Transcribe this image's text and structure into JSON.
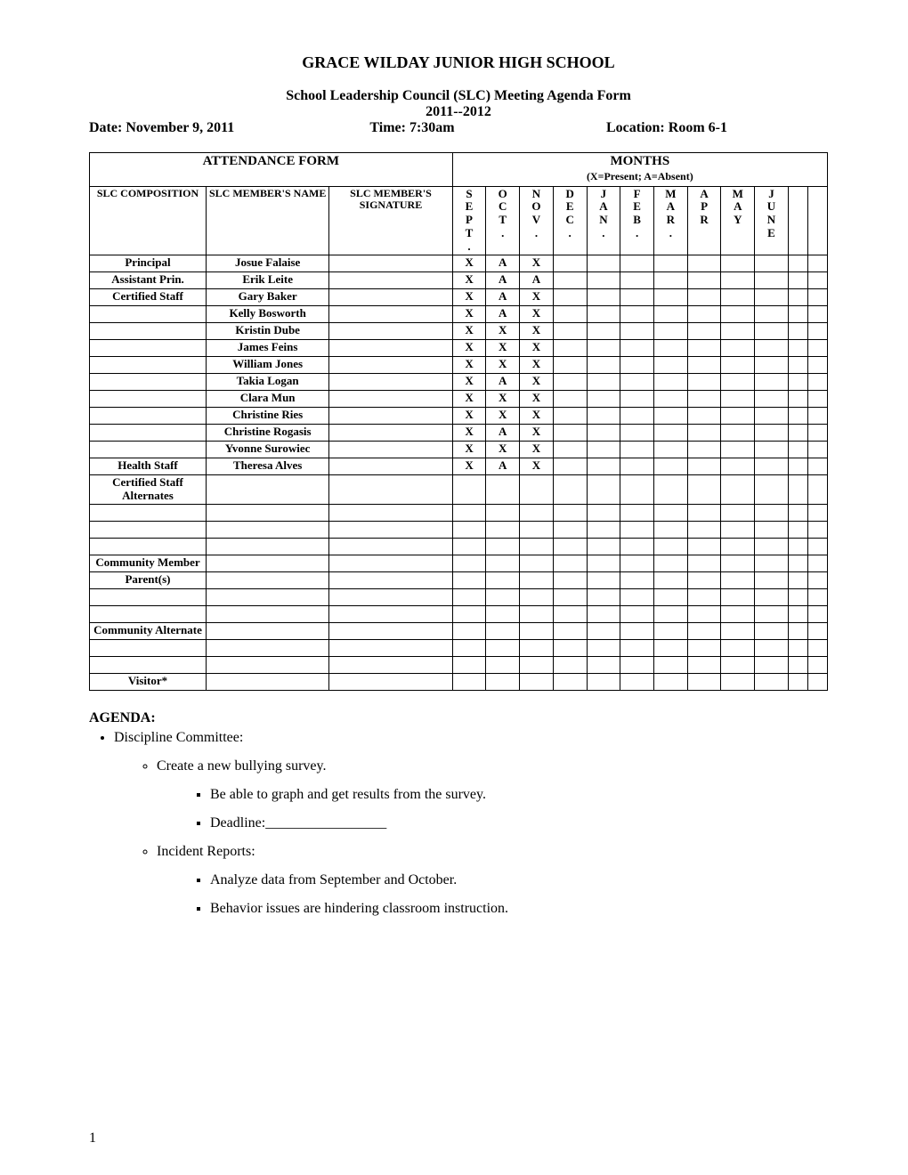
{
  "header": {
    "school": "GRACE WILDAY JUNIOR HIGH SCHOOL",
    "formTitle": "School Leadership Council (SLC) Meeting Agenda Form",
    "year": "2011--2012",
    "dateLabel": "Date: November 9, 2011",
    "timeLabel": "Time: 7:30am",
    "locationLabel": "Location: Room 6-1"
  },
  "tableHeaders": {
    "attendanceForm": "ATTENDANCE FORM",
    "months": "MONTHS",
    "monthsLegend": "(X=Present; A=Absent)",
    "composition": "SLC COMPOSITION",
    "memberName": "SLC MEMBER'S NAME",
    "memberSig": "SLC MEMBER'S SIGNATURE",
    "monthCols": [
      "SEPT.",
      "OCT.",
      "NOV.",
      "DEC.",
      "JAN.",
      "FEB.",
      "MAR.",
      "APR",
      "MAY",
      "JUNE"
    ]
  },
  "rows": [
    {
      "comp": "Principal",
      "name": "Josue Falaise",
      "m": [
        "X",
        "A",
        "X",
        "",
        "",
        "",
        "",
        "",
        "",
        ""
      ]
    },
    {
      "comp": "Assistant Prin.",
      "name": "Erik Leite",
      "m": [
        "X",
        "A",
        "A",
        "",
        "",
        "",
        "",
        "",
        "",
        ""
      ]
    },
    {
      "comp": "Certified Staff",
      "name": "Gary Baker",
      "m": [
        "X",
        "A",
        "X",
        "",
        "",
        "",
        "",
        "",
        "",
        ""
      ]
    },
    {
      "comp": "",
      "name": "Kelly Bosworth",
      "m": [
        "X",
        "A",
        "X",
        "",
        "",
        "",
        "",
        "",
        "",
        ""
      ]
    },
    {
      "comp": "",
      "name": "Kristin Dube",
      "m": [
        "X",
        "X",
        "X",
        "",
        "",
        "",
        "",
        "",
        "",
        ""
      ]
    },
    {
      "comp": "",
      "name": "James Feins",
      "m": [
        "X",
        "X",
        "X",
        "",
        "",
        "",
        "",
        "",
        "",
        ""
      ]
    },
    {
      "comp": "",
      "name": "William Jones",
      "m": [
        "X",
        "X",
        "X",
        "",
        "",
        "",
        "",
        "",
        "",
        ""
      ]
    },
    {
      "comp": "",
      "name": "Takia Logan",
      "m": [
        "X",
        "A",
        "X",
        "",
        "",
        "",
        "",
        "",
        "",
        ""
      ]
    },
    {
      "comp": "",
      "name": "Clara Mun",
      "m": [
        "X",
        "X",
        "X",
        "",
        "",
        "",
        "",
        "",
        "",
        ""
      ]
    },
    {
      "comp": "",
      "name": "Christine Ries",
      "m": [
        "X",
        "X",
        "X",
        "",
        "",
        "",
        "",
        "",
        "",
        ""
      ]
    },
    {
      "comp": "",
      "name": "Christine Rogasis",
      "m": [
        "X",
        "A",
        "X",
        "",
        "",
        "",
        "",
        "",
        "",
        ""
      ]
    },
    {
      "comp": "",
      "name": "Yvonne Surowiec",
      "m": [
        "X",
        "X",
        "X",
        "",
        "",
        "",
        "",
        "",
        "",
        ""
      ]
    },
    {
      "comp": "Health Staff",
      "name": "Theresa Alves",
      "m": [
        "X",
        "A",
        "X",
        "",
        "",
        "",
        "",
        "",
        "",
        ""
      ]
    },
    {
      "comp": "Certified Staff Alternates",
      "name": "",
      "m": [
        "",
        "",
        "",
        "",
        "",
        "",
        "",
        "",
        "",
        ""
      ]
    },
    {
      "comp": "",
      "name": "",
      "m": [
        "",
        "",
        "",
        "",
        "",
        "",
        "",
        "",
        "",
        ""
      ]
    },
    {
      "comp": "",
      "name": "",
      "m": [
        "",
        "",
        "",
        "",
        "",
        "",
        "",
        "",
        "",
        ""
      ]
    },
    {
      "comp": "",
      "name": "",
      "m": [
        "",
        "",
        "",
        "",
        "",
        "",
        "",
        "",
        "",
        ""
      ]
    },
    {
      "comp": "Community Member",
      "name": "",
      "m": [
        "",
        "",
        "",
        "",
        "",
        "",
        "",
        "",
        "",
        ""
      ]
    },
    {
      "comp": "Parent(s)",
      "name": "",
      "m": [
        "",
        "",
        "",
        "",
        "",
        "",
        "",
        "",
        "",
        ""
      ]
    },
    {
      "comp": "",
      "name": "",
      "m": [
        "",
        "",
        "",
        "",
        "",
        "",
        "",
        "",
        "",
        ""
      ]
    },
    {
      "comp": "",
      "name": "",
      "m": [
        "",
        "",
        "",
        "",
        "",
        "",
        "",
        "",
        "",
        ""
      ]
    },
    {
      "comp": "Community Alternate",
      "name": "",
      "m": [
        "",
        "",
        "",
        "",
        "",
        "",
        "",
        "",
        "",
        ""
      ]
    },
    {
      "comp": "",
      "name": "",
      "m": [
        "",
        "",
        "",
        "",
        "",
        "",
        "",
        "",
        "",
        ""
      ]
    },
    {
      "comp": "",
      "name": "",
      "m": [
        "",
        "",
        "",
        "",
        "",
        "",
        "",
        "",
        "",
        ""
      ]
    },
    {
      "comp": "Visitor*",
      "name": "",
      "m": [
        "",
        "",
        "",
        "",
        "",
        "",
        "",
        "",
        "",
        ""
      ]
    }
  ],
  "agenda": {
    "heading": "AGENDA:",
    "item1": "Discipline Committee:",
    "item1a": "Create a new bullying survey.",
    "item1a1": "Be able to graph and get results from the survey.",
    "item1a2": "Deadline:_________________",
    "item1b": "Incident Reports:",
    "item1b1": "Analyze data from September and October.",
    "item1b2": "Behavior issues are hindering classroom instruction."
  },
  "pageNumber": "1"
}
